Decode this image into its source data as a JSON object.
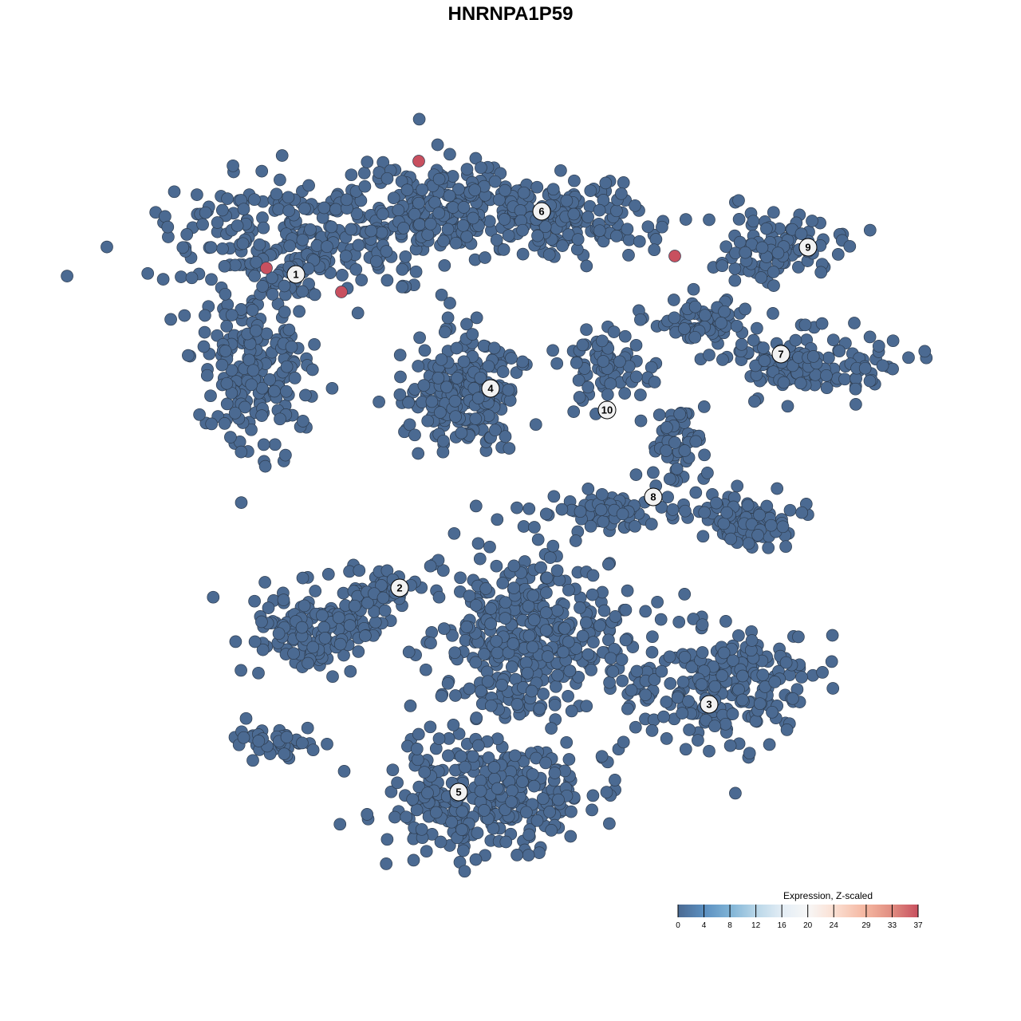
{
  "chart_data": {
    "type": "scatter",
    "title": "HNRNPA1P59",
    "xlabel": "",
    "ylabel": "",
    "grid": false,
    "axes_visible": false,
    "point_color_default": "#4b6a92",
    "point_color_high": "#c8505f",
    "point_stroke": "#2e3d50",
    "clusters": [
      "1",
      "2",
      "3",
      "4",
      "5",
      "6",
      "7",
      "8",
      "9",
      "10"
    ],
    "high_expression_points": [
      {
        "cluster": "1",
        "value": 37
      },
      {
        "cluster": "1",
        "value": 37
      },
      {
        "cluster": "6",
        "value": 37
      },
      {
        "cluster": "6",
        "value": 37
      }
    ],
    "legend": {
      "title": "Expression, Z-scaled",
      "placement": "bottom-right",
      "ticks": [
        0,
        4,
        8,
        12,
        16,
        20,
        24,
        29,
        33,
        37
      ],
      "tick_labels": [
        "0",
        "4",
        "8",
        "12",
        "16",
        "20",
        "24",
        "29",
        "33",
        "37"
      ],
      "range": [
        0,
        37
      ],
      "colors": [
        "#4b6a92",
        "#5b8fc0",
        "#7fb3d6",
        "#b8d6e8",
        "#e3edf5",
        "#f7f7f7",
        "#fbe0d3",
        "#f4b59f",
        "#e08c80",
        "#c8505f"
      ]
    }
  }
}
